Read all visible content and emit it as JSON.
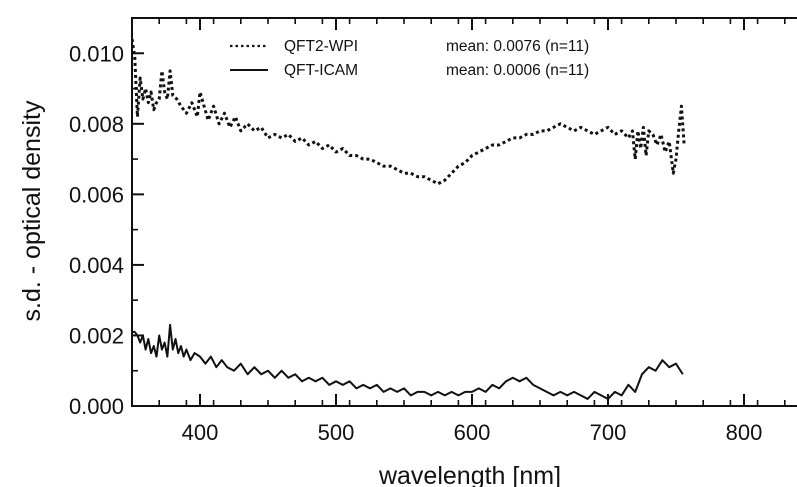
{
  "chart_data": {
    "type": "line",
    "title": "",
    "xlabel": "wavelength [nm]",
    "ylabel": "s.d. - optical density",
    "xlim": [
      350,
      850
    ],
    "ylim": [
      0.0,
      0.011
    ],
    "x_ticks": [
      400,
      500,
      600,
      700,
      800
    ],
    "x_tick_labels": [
      "400",
      "500",
      "600",
      "700",
      "800"
    ],
    "y_ticks": [
      0.0,
      0.002,
      0.004,
      0.006,
      0.008,
      0.01
    ],
    "y_tick_labels": [
      "0.000",
      "0.002",
      "0.004",
      "0.006",
      "0.008",
      "0.010"
    ],
    "grid": false,
    "legend_position": "top-left",
    "series": [
      {
        "name": "QFT2-WPI",
        "stat": "mean: 0.0076 (n=11)",
        "style": "dotted",
        "color": "#111111",
        "x": [
          350,
          352,
          354,
          356,
          358,
          360,
          362,
          364,
          366,
          368,
          370,
          372,
          374,
          376,
          378,
          380,
          383,
          386,
          390,
          394,
          398,
          400,
          403,
          406,
          410,
          414,
          418,
          422,
          426,
          430,
          435,
          440,
          445,
          450,
          455,
          460,
          465,
          470,
          475,
          480,
          485,
          490,
          495,
          500,
          505,
          510,
          515,
          520,
          525,
          530,
          535,
          540,
          545,
          550,
          555,
          560,
          565,
          570,
          575,
          580,
          585,
          590,
          595,
          600,
          605,
          610,
          615,
          620,
          625,
          630,
          635,
          640,
          645,
          650,
          655,
          660,
          665,
          670,
          675,
          680,
          685,
          690,
          695,
          700,
          705,
          710,
          715,
          718,
          720,
          722,
          724,
          726,
          728,
          730,
          733,
          736,
          739,
          742,
          745,
          748,
          750,
          752,
          754,
          756
        ],
        "y": [
          0.0104,
          0.0099,
          0.0082,
          0.0093,
          0.0087,
          0.009,
          0.0086,
          0.0089,
          0.0084,
          0.0086,
          0.0087,
          0.0095,
          0.0089,
          0.0087,
          0.0095,
          0.0088,
          0.0087,
          0.0085,
          0.0083,
          0.0086,
          0.0082,
          0.0089,
          0.0085,
          0.0081,
          0.0085,
          0.008,
          0.0083,
          0.0079,
          0.0082,
          0.0078,
          0.008,
          0.0078,
          0.0079,
          0.0076,
          0.0077,
          0.0076,
          0.0077,
          0.0075,
          0.0076,
          0.0074,
          0.0075,
          0.0073,
          0.0074,
          0.0072,
          0.0073,
          0.0071,
          0.0071,
          0.007,
          0.007,
          0.0069,
          0.0068,
          0.0068,
          0.0067,
          0.0066,
          0.0066,
          0.0065,
          0.0065,
          0.0064,
          0.0063,
          0.0064,
          0.0066,
          0.0068,
          0.0069,
          0.0071,
          0.0072,
          0.0073,
          0.0074,
          0.0074,
          0.0075,
          0.0076,
          0.0076,
          0.0077,
          0.0077,
          0.0078,
          0.0078,
          0.0079,
          0.008,
          0.0079,
          0.0078,
          0.0079,
          0.0078,
          0.0077,
          0.0078,
          0.0079,
          0.0077,
          0.0078,
          0.0076,
          0.0078,
          0.007,
          0.0078,
          0.0073,
          0.0079,
          0.0071,
          0.0078,
          0.0077,
          0.0074,
          0.0077,
          0.0072,
          0.0075,
          0.0066,
          0.007,
          0.0078,
          0.0085,
          0.0074
        ]
      },
      {
        "name": "QFT-ICAM",
        "stat": "mean: 0.0006 (n=11)",
        "style": "solid",
        "color": "#111111",
        "x": [
          350,
          352,
          354,
          356,
          358,
          360,
          362,
          364,
          366,
          368,
          370,
          372,
          374,
          376,
          378,
          380,
          382,
          384,
          386,
          388,
          390,
          393,
          396,
          400,
          404,
          408,
          412,
          416,
          420,
          425,
          430,
          435,
          440,
          445,
          450,
          455,
          460,
          465,
          470,
          475,
          480,
          485,
          490,
          495,
          500,
          505,
          510,
          515,
          520,
          525,
          530,
          535,
          540,
          545,
          550,
          555,
          560,
          565,
          570,
          575,
          580,
          585,
          590,
          595,
          600,
          605,
          610,
          615,
          620,
          625,
          630,
          635,
          640,
          645,
          650,
          655,
          660,
          665,
          670,
          675,
          680,
          685,
          690,
          695,
          700,
          705,
          710,
          715,
          720,
          725,
          730,
          735,
          740,
          745,
          750,
          755
        ],
        "y": [
          0.0021,
          0.0021,
          0.002,
          0.0018,
          0.002,
          0.0016,
          0.0019,
          0.0015,
          0.0017,
          0.0014,
          0.002,
          0.0016,
          0.0018,
          0.0014,
          0.0023,
          0.0016,
          0.0019,
          0.0015,
          0.0017,
          0.0014,
          0.0016,
          0.0013,
          0.0015,
          0.0014,
          0.0012,
          0.0014,
          0.0011,
          0.0013,
          0.0011,
          0.001,
          0.0012,
          0.0009,
          0.0011,
          0.0009,
          0.001,
          0.0008,
          0.001,
          0.0008,
          0.0009,
          0.0007,
          0.0008,
          0.0007,
          0.0008,
          0.0006,
          0.0007,
          0.0006,
          0.0007,
          0.0005,
          0.0006,
          0.0005,
          0.0006,
          0.0004,
          0.0005,
          0.0004,
          0.0005,
          0.0003,
          0.0004,
          0.0004,
          0.0003,
          0.0004,
          0.0003,
          0.0004,
          0.0003,
          0.0004,
          0.0004,
          0.0005,
          0.0004,
          0.0006,
          0.0005,
          0.0007,
          0.0008,
          0.0007,
          0.0008,
          0.0006,
          0.0005,
          0.0004,
          0.0003,
          0.0004,
          0.0003,
          0.0004,
          0.0003,
          0.0002,
          0.0004,
          0.0003,
          0.0002,
          0.0004,
          0.0003,
          0.0006,
          0.0004,
          0.0009,
          0.0011,
          0.001,
          0.0013,
          0.0011,
          0.0012,
          0.0009
        ]
      }
    ]
  }
}
